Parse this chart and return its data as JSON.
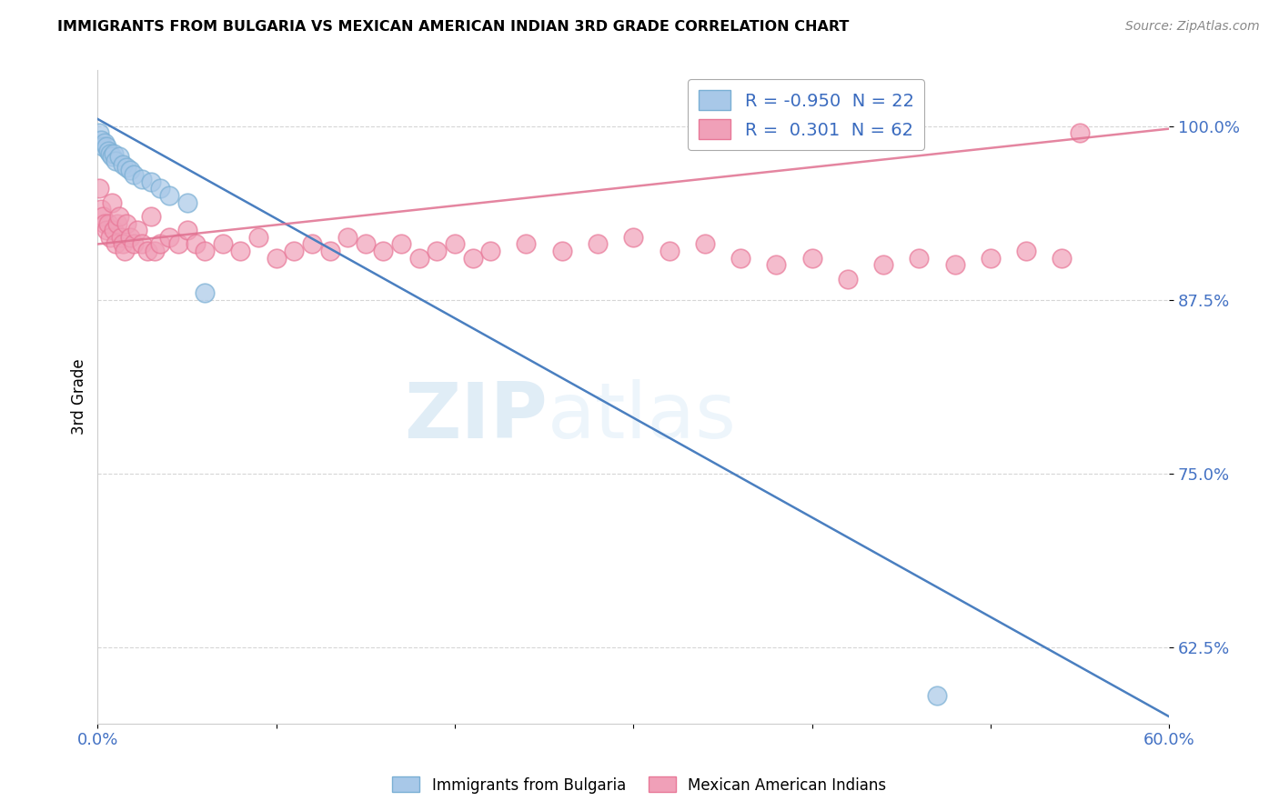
{
  "title": "IMMIGRANTS FROM BULGARIA VS MEXICAN AMERICAN INDIAN 3RD GRADE CORRELATION CHART",
  "source": "Source: ZipAtlas.com",
  "ylabel": "3rd Grade",
  "xlim": [
    0.0,
    60.0
  ],
  "ylim": [
    57.0,
    104.0
  ],
  "yticks": [
    62.5,
    75.0,
    87.5,
    100.0
  ],
  "ytick_labels": [
    "62.5%",
    "75.0%",
    "87.5%",
    "100.0%"
  ],
  "xticks": [
    0.0,
    10.0,
    20.0,
    30.0,
    40.0,
    50.0,
    60.0
  ],
  "xtick_labels": [
    "0.0%",
    "",
    "",
    "",
    "",
    "",
    "60.0%"
  ],
  "blue_color": "#a8c8e8",
  "pink_color": "#f0a0b8",
  "blue_edge_color": "#7aafd4",
  "pink_edge_color": "#e87898",
  "blue_line_color": "#4a7fc0",
  "pink_line_color": "#e07090",
  "R_blue": -0.95,
  "N_blue": 22,
  "R_pink": 0.301,
  "N_pink": 62,
  "legend_label_blue": "Immigrants from Bulgaria",
  "legend_label_pink": "Mexican American Indians",
  "watermark_zip": "ZIP",
  "watermark_atlas": "atlas",
  "blue_scatter_x": [
    0.1,
    0.2,
    0.3,
    0.4,
    0.5,
    0.6,
    0.7,
    0.8,
    0.9,
    1.0,
    1.2,
    1.4,
    1.6,
    1.8,
    2.0,
    2.5,
    3.0,
    3.5,
    4.0,
    5.0,
    6.0,
    47.0
  ],
  "blue_scatter_y": [
    99.5,
    99.0,
    98.5,
    98.8,
    98.5,
    98.2,
    98.0,
    97.8,
    98.0,
    97.5,
    97.8,
    97.2,
    97.0,
    96.8,
    96.5,
    96.2,
    96.0,
    95.5,
    95.0,
    94.5,
    88.0,
    59.0
  ],
  "pink_scatter_x": [
    0.1,
    0.2,
    0.3,
    0.4,
    0.5,
    0.6,
    0.7,
    0.8,
    0.9,
    1.0,
    1.1,
    1.2,
    1.3,
    1.4,
    1.5,
    1.6,
    1.8,
    2.0,
    2.2,
    2.5,
    2.8,
    3.0,
    3.2,
    3.5,
    4.0,
    4.5,
    5.0,
    5.5,
    6.0,
    7.0,
    8.0,
    9.0,
    10.0,
    11.0,
    12.0,
    13.0,
    14.0,
    15.0,
    16.0,
    17.0,
    18.0,
    19.0,
    20.0,
    21.0,
    22.0,
    24.0,
    26.0,
    28.0,
    30.0,
    32.0,
    34.0,
    36.0,
    38.0,
    40.0,
    42.0,
    44.0,
    46.0,
    48.0,
    50.0,
    52.0,
    54.0,
    55.0
  ],
  "pink_scatter_y": [
    95.5,
    94.0,
    93.5,
    93.0,
    92.5,
    93.0,
    92.0,
    94.5,
    92.5,
    91.5,
    93.0,
    93.5,
    92.0,
    91.5,
    91.0,
    93.0,
    92.0,
    91.5,
    92.5,
    91.5,
    91.0,
    93.5,
    91.0,
    91.5,
    92.0,
    91.5,
    92.5,
    91.5,
    91.0,
    91.5,
    91.0,
    92.0,
    90.5,
    91.0,
    91.5,
    91.0,
    92.0,
    91.5,
    91.0,
    91.5,
    90.5,
    91.0,
    91.5,
    90.5,
    91.0,
    91.5,
    91.0,
    91.5,
    92.0,
    91.0,
    91.5,
    90.5,
    90.0,
    90.5,
    89.0,
    90.0,
    90.5,
    90.0,
    90.5,
    91.0,
    90.5,
    99.5
  ],
  "blue_line_x0": 0.0,
  "blue_line_y0": 100.5,
  "blue_line_x1": 60.0,
  "blue_line_y1": 57.5,
  "pink_line_x0": 0.0,
  "pink_line_y0": 91.5,
  "pink_line_x1": 60.0,
  "pink_line_y1": 99.8
}
